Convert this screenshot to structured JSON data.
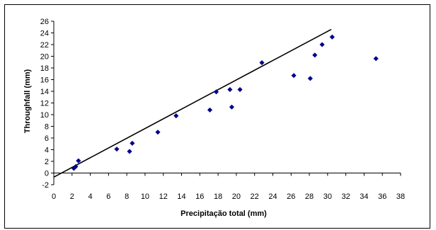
{
  "chart_data": {
    "type": "scatter",
    "title": "",
    "xlabel": "Precipitação total (mm)",
    "ylabel": "Throughfall (mm)",
    "xlim": [
      0,
      38
    ],
    "ylim": [
      -2,
      26
    ],
    "x_ticks": [
      "0",
      "2",
      "4",
      "6",
      "8",
      "10",
      "12",
      "14",
      "16",
      "18",
      "20",
      "22",
      "24",
      "26",
      "28",
      "30",
      "32",
      "34",
      "36",
      "38"
    ],
    "y_ticks": [
      "-2",
      "0",
      "2",
      "4",
      "6",
      "8",
      "10",
      "12",
      "14",
      "16",
      "18",
      "20",
      "22",
      "24",
      "26"
    ],
    "grid": false,
    "legend": "none",
    "colors": {
      "marker": "#00008B",
      "line": "#000000"
    },
    "series": [
      {
        "marker": "diamond",
        "x": [
          2.2,
          2.4,
          2.7,
          6.9,
          8.3,
          8.6,
          11.4,
          13.4,
          17.1,
          17.8,
          19.3,
          19.5,
          20.4,
          22.8,
          26.3,
          28.1,
          28.6,
          29.4,
          30.5,
          35.3
        ],
        "y": [
          0.8,
          1.1,
          2.1,
          4.1,
          3.7,
          5.1,
          7.0,
          9.8,
          10.8,
          13.9,
          14.3,
          11.3,
          14.3,
          18.9,
          16.7,
          16.2,
          20.2,
          22.0,
          23.3,
          19.6
        ]
      }
    ],
    "reference_line": {
      "x": [
        0,
        30.4
      ],
      "y": [
        -0.7,
        24.6
      ]
    }
  }
}
